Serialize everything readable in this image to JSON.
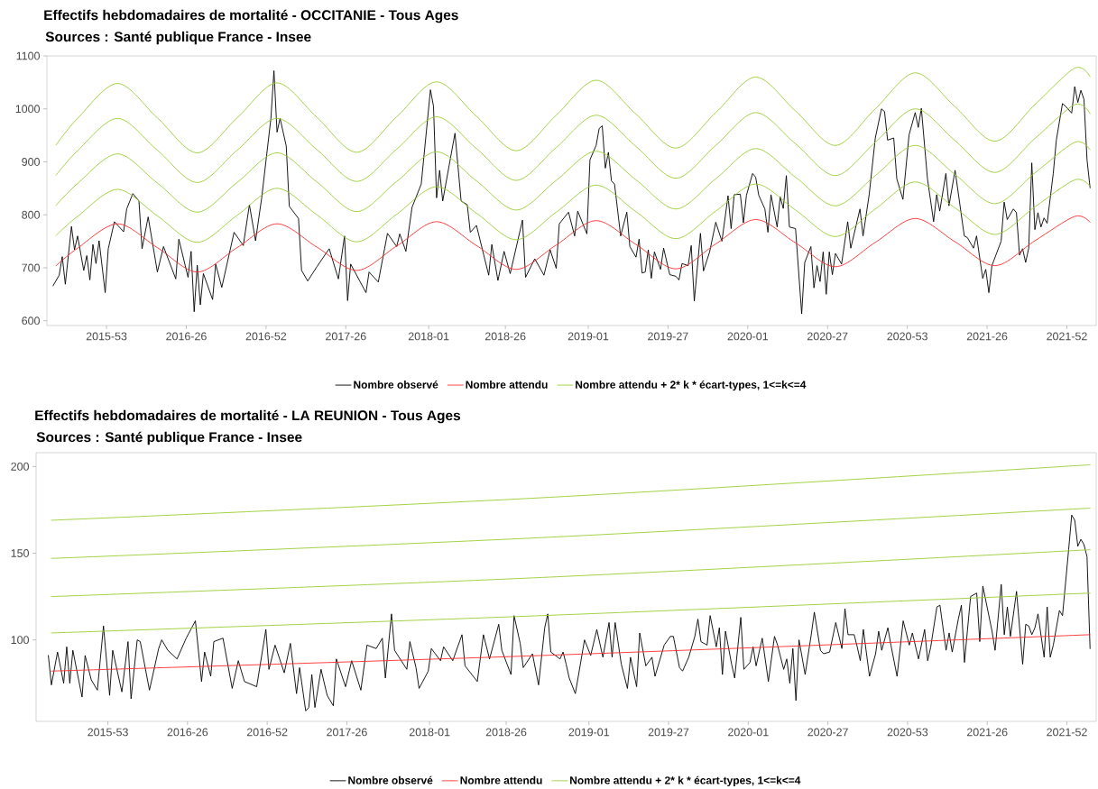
{
  "chart_data": [
    {
      "type": "line",
      "title": "Effectifs hebdomadaires de mortalité  - OCCITANIE - Tous Ages",
      "subtitle": "Sources : Santé publique France - Insee",
      "xlim": [
        "2015-08-17",
        "2022-03-07"
      ],
      "ylim": [
        591,
        1100
      ],
      "xticks": [
        {
          "value": "2015-12-31",
          "label": "2015-53"
        },
        {
          "value": "2016-06-30",
          "label": "2016-26"
        },
        {
          "value": "2016-12-29",
          "label": "2016-52"
        },
        {
          "value": "2017-06-29",
          "label": "2017-26"
        },
        {
          "value": "2018-01-04",
          "label": "2018-01"
        },
        {
          "value": "2018-06-28",
          "label": "2018-26"
        },
        {
          "value": "2019-01-03",
          "label": "2019-01"
        },
        {
          "value": "2019-07-04",
          "label": "2019-27"
        },
        {
          "value": "2020-01-02",
          "label": "2020-01"
        },
        {
          "value": "2020-07-02",
          "label": "2020-27"
        },
        {
          "value": "2020-12-31",
          "label": "2020-53"
        },
        {
          "value": "2021-07-01",
          "label": "2021-26"
        },
        {
          "value": "2021-12-30",
          "label": "2021-52"
        }
      ],
      "yticks": [
        600,
        700,
        800,
        900,
        1000,
        1100
      ],
      "legend": "bottom",
      "marker": "none",
      "line_style": "solid",
      "x": [
        "2015-09-07",
        "2015-10-26",
        "2016-01-25",
        "2016-04-25",
        "2016-07-25",
        "2016-10-24",
        "2017-01-23",
        "2017-04-24",
        "2017-07-24",
        "2017-10-23",
        "2018-01-22",
        "2018-04-23",
        "2018-07-23",
        "2018-10-22",
        "2019-01-21",
        "2019-04-22",
        "2019-07-22",
        "2019-10-21",
        "2020-01-20",
        "2020-04-20",
        "2020-07-20",
        "2020-10-19",
        "2021-01-18",
        "2021-04-19",
        "2021-07-19",
        "2021-10-18",
        "2022-01-17",
        "2022-02-21"
      ],
      "series": [
        {
          "name": "Nombre observé",
          "color": "#000000",
          "x": [
            "2015-08-31",
            "2015-09-14",
            "2015-09-21",
            "2015-09-28",
            "2015-10-12",
            "2015-10-19",
            "2015-10-26",
            "2015-11-09",
            "2015-11-16",
            "2015-11-23",
            "2015-11-30",
            "2015-12-07",
            "2015-12-14",
            "2015-12-28",
            "2016-01-04",
            "2016-01-18",
            "2016-02-08",
            "2016-02-15",
            "2016-02-29",
            "2016-03-14",
            "2016-03-21",
            "2016-04-04",
            "2016-04-25",
            "2016-05-09",
            "2016-06-06",
            "2016-06-13",
            "2016-07-04",
            "2016-07-11",
            "2016-07-18",
            "2016-07-25",
            "2016-08-01",
            "2016-08-08",
            "2016-08-29",
            "2016-09-05",
            "2016-09-19",
            "2016-10-17",
            "2016-11-07",
            "2016-11-21",
            "2016-12-05",
            "2016-12-19",
            "2017-01-09",
            "2017-01-16",
            "2017-01-23",
            "2017-01-30",
            "2017-02-13",
            "2017-02-20",
            "2017-03-13",
            "2017-03-20",
            "2017-04-03",
            "2017-04-24",
            "2017-05-22",
            "2017-06-12",
            "2017-06-26",
            "2017-07-03",
            "2017-07-10",
            "2017-08-14",
            "2017-08-21",
            "2017-09-11",
            "2017-10-02",
            "2017-10-23",
            "2017-10-30",
            "2017-11-13",
            "2017-11-27",
            "2017-12-18",
            "2018-01-08",
            "2018-01-15",
            "2018-01-22",
            "2018-01-29",
            "2018-02-05",
            "2018-03-05",
            "2018-03-19",
            "2018-04-02",
            "2018-04-09",
            "2018-04-23",
            "2018-05-21",
            "2018-05-28",
            "2018-06-11",
            "2018-06-25",
            "2018-07-09",
            "2018-08-06",
            "2018-08-13",
            "2018-09-03",
            "2018-09-24",
            "2018-10-08",
            "2018-10-22",
            "2018-10-29",
            "2018-11-19",
            "2018-12-03",
            "2018-12-10",
            "2018-12-31",
            "2019-01-07",
            "2019-01-21",
            "2019-01-28",
            "2019-02-04",
            "2019-02-11",
            "2019-02-18",
            "2019-02-25",
            "2019-03-04",
            "2019-03-18",
            "2019-04-01",
            "2019-04-08",
            "2019-04-22",
            "2019-04-29",
            "2019-05-06",
            "2019-05-13",
            "2019-05-20",
            "2019-05-27",
            "2019-06-03",
            "2019-06-17",
            "2019-06-24",
            "2019-07-08",
            "2019-07-22",
            "2019-07-29",
            "2019-08-05",
            "2019-08-19",
            "2019-08-26",
            "2019-09-02",
            "2019-09-16",
            "2019-09-23",
            "2019-10-07",
            "2019-10-21",
            "2019-11-04",
            "2019-11-18",
            "2019-11-25",
            "2019-12-02",
            "2019-12-16",
            "2019-12-23",
            "2019-12-30",
            "2020-01-13",
            "2020-01-20",
            "2020-01-27",
            "2020-02-10",
            "2020-02-17",
            "2020-02-24",
            "2020-03-09",
            "2020-03-16",
            "2020-03-23",
            "2020-03-30",
            "2020-04-06",
            "2020-04-20",
            "2020-05-04",
            "2020-05-11",
            "2020-05-25",
            "2020-06-01",
            "2020-06-08",
            "2020-06-15",
            "2020-06-22",
            "2020-06-29",
            "2020-07-06",
            "2020-07-13",
            "2020-07-20",
            "2020-08-03",
            "2020-08-17",
            "2020-08-24",
            "2020-09-14",
            "2020-09-21",
            "2020-10-05",
            "2020-10-19",
            "2020-11-02",
            "2020-11-09",
            "2020-11-16",
            "2020-11-30",
            "2020-12-07",
            "2020-12-21",
            "2021-01-04",
            "2021-01-18",
            "2021-01-25",
            "2021-02-01",
            "2021-02-15",
            "2021-03-01",
            "2021-03-08",
            "2021-03-15",
            "2021-03-29",
            "2021-04-05",
            "2021-04-19",
            "2021-05-10",
            "2021-05-17",
            "2021-05-31",
            "2021-06-07",
            "2021-06-21",
            "2021-06-28",
            "2021-07-05",
            "2021-07-12",
            "2021-08-02",
            "2021-08-09",
            "2021-08-16",
            "2021-08-30",
            "2021-09-06",
            "2021-09-13",
            "2021-09-20",
            "2021-09-27",
            "2021-10-04",
            "2021-10-11",
            "2021-10-18",
            "2021-10-25",
            "2021-11-01",
            "2021-11-08",
            "2021-11-15",
            "2021-11-29",
            "2021-12-06",
            "2021-12-20",
            "2021-12-27",
            "2022-01-10",
            "2022-01-17",
            "2022-01-24",
            "2022-01-31",
            "2022-02-07",
            "2022-02-14",
            "2022-02-21"
          ],
          "values": [
            666,
            686,
            721,
            669,
            778,
            734,
            760,
            695,
            723,
            677,
            744,
            708,
            751,
            653,
            736,
            787,
            768,
            811,
            840,
            826,
            736,
            796,
            692,
            740,
            679,
            754,
            682,
            731,
            617,
            705,
            630,
            689,
            640,
            707,
            663,
            767,
            742,
            819,
            751,
            832,
            982,
            1072,
            956,
            982,
            930,
            816,
            793,
            695,
            675,
            702,
            736,
            679,
            760,
            638,
            707,
            653,
            692,
            673,
            765,
            740,
            764,
            731,
            814,
            858,
            1036,
            1005,
            832,
            884,
            826,
            954,
            826,
            819,
            767,
            780,
            686,
            744,
            676,
            731,
            689,
            790,
            682,
            717,
            686,
            734,
            699,
            783,
            805,
            760,
            807,
            764,
            904,
            931,
            963,
            968,
            888,
            918,
            864,
            858,
            760,
            805,
            740,
            720,
            754,
            690,
            692,
            734,
            680,
            730,
            697,
            737,
            687,
            684,
            677,
            708,
            704,
            742,
            637,
            765,
            694,
            730,
            786,
            750,
            836,
            774,
            838,
            839,
            785,
            837,
            878,
            871,
            837,
            811,
            767,
            838,
            777,
            834,
            812,
            874,
            777,
            774,
            613,
            710,
            740,
            662,
            704,
            674,
            730,
            650,
            730,
            687,
            727,
            707,
            787,
            737,
            811,
            760,
            838,
            945,
            1000,
            995,
            941,
            945,
            868,
            829,
            951,
            993,
            965,
            1001,
            868,
            787,
            838,
            807,
            878,
            817,
            884,
            760,
            757,
            737,
            760,
            680,
            697,
            653,
            704,
            750,
            824,
            791,
            811,
            804,
            724,
            736,
            710,
            737,
            898,
            772,
            804,
            777,
            794,
            784,
            878,
            941,
            1010,
            1005,
            992,
            1042,
            1012,
            1035,
            1018,
            904,
            851
          ]
        },
        {
          "name": "Nombre attendu",
          "color": "#ff2a2a",
          "values": [
            704,
            737,
            783,
            738,
            692,
            738,
            783,
            739,
            695,
            741,
            787,
            742,
            697,
            743,
            789,
            744,
            698,
            745,
            791,
            747,
            702,
            748,
            793,
            749,
            704,
            751,
            797,
            786
          ]
        },
        {
          "name": "Nombre attendu + 2* k * écart-types, 1<=k<=4",
          "color": "#9acd32",
          "values": [
            761,
            797,
            848,
            798,
            748,
            799,
            850,
            800,
            749,
            801,
            853,
            803,
            753,
            805,
            856,
            806,
            755,
            807,
            858,
            809,
            759,
            811,
            862,
            813,
            763,
            815,
            866,
            854
          ]
        },
        {
          "color": "#9acd32",
          "values": [
            818,
            859,
            915,
            860,
            805,
            861,
            917,
            862,
            806,
            863,
            919,
            864,
            809,
            865,
            920,
            866,
            811,
            868,
            925,
            871,
            817,
            874,
            931,
            876,
            821,
            879,
            937,
            923
          ]
        },
        {
          "color": "#9acd32",
          "values": [
            875,
            921,
            982,
            922,
            861,
            922,
            982,
            923,
            863,
            924,
            985,
            925,
            865,
            927,
            988,
            929,
            869,
            931,
            993,
            934,
            874,
            937,
            1000,
            940,
            880,
            944,
            1008,
            991
          ]
        },
        {
          "color": "#9acd32",
          "values": [
            932,
            982,
            1048,
            983,
            917,
            983,
            1049,
            984,
            918,
            985,
            1051,
            986,
            921,
            988,
            1054,
            990,
            926,
            993,
            1060,
            996,
            931,
            1000,
            1068,
            1004,
            939,
            1008,
            1077,
            1061
          ]
        }
      ]
    },
    {
      "type": "line",
      "title": "Effectifs hebdomadaires de mortalité  - LA REUNION - Tous Ages",
      "subtitle": "Sources : Santé publique France - Insee",
      "xlim": [
        "2015-07-20",
        "2022-03-07"
      ],
      "ylim": [
        53,
        208
      ],
      "xticks": [
        {
          "value": "2015-12-31",
          "label": "2015-53"
        },
        {
          "value": "2016-06-30",
          "label": "2016-26"
        },
        {
          "value": "2016-12-29",
          "label": "2016-52"
        },
        {
          "value": "2017-06-29",
          "label": "2017-26"
        },
        {
          "value": "2018-01-04",
          "label": "2018-01"
        },
        {
          "value": "2018-06-28",
          "label": "2018-26"
        },
        {
          "value": "2019-01-03",
          "label": "2019-01"
        },
        {
          "value": "2019-07-04",
          "label": "2019-27"
        },
        {
          "value": "2020-01-02",
          "label": "2020-01"
        },
        {
          "value": "2020-07-02",
          "label": "2020-27"
        },
        {
          "value": "2020-12-31",
          "label": "2020-53"
        },
        {
          "value": "2021-07-01",
          "label": "2021-26"
        },
        {
          "value": "2021-12-30",
          "label": "2021-52"
        }
      ],
      "yticks": [
        100,
        150,
        200
      ],
      "legend": "bottom",
      "marker": "none",
      "line_style": "solid",
      "x": [
        "2015-08-24",
        "2018-09-17",
        "2022-02-21"
      ],
      "series": [
        {
          "name": "Nombre observé",
          "color": "#000000",
          "x": [
            "2015-08-17",
            "2015-08-24",
            "2015-09-07",
            "2015-09-21",
            "2015-09-28",
            "2015-10-05",
            "2015-10-12",
            "2015-11-02",
            "2015-11-09",
            "2015-11-23",
            "2015-12-07",
            "2015-12-21",
            "2016-01-04",
            "2016-01-11",
            "2016-02-01",
            "2016-02-15",
            "2016-02-22",
            "2016-03-07",
            "2016-03-14",
            "2016-04-04",
            "2016-04-25",
            "2016-05-02",
            "2016-05-16",
            "2016-06-06",
            "2016-06-27",
            "2016-07-18",
            "2016-08-01",
            "2016-08-08",
            "2016-08-22",
            "2016-08-29",
            "2016-09-19",
            "2016-10-10",
            "2016-10-24",
            "2016-11-07",
            "2016-12-05",
            "2016-12-26",
            "2017-01-02",
            "2017-01-16",
            "2017-02-06",
            "2017-02-20",
            "2017-03-06",
            "2017-03-13",
            "2017-03-27",
            "2017-04-03",
            "2017-04-10",
            "2017-04-17",
            "2017-05-01",
            "2017-05-15",
            "2017-05-29",
            "2017-06-05",
            "2017-06-26",
            "2017-07-10",
            "2017-07-31",
            "2017-08-14",
            "2017-09-04",
            "2017-09-18",
            "2017-09-25",
            "2017-10-09",
            "2017-10-16",
            "2017-11-13",
            "2017-11-20",
            "2017-12-04",
            "2017-12-11",
            "2018-01-01",
            "2018-01-08",
            "2018-01-29",
            "2018-02-05",
            "2018-02-26",
            "2018-03-19",
            "2018-03-26",
            "2018-04-23",
            "2018-05-07",
            "2018-05-21",
            "2018-06-11",
            "2018-06-18",
            "2018-07-09",
            "2018-07-16",
            "2018-07-30",
            "2018-08-06",
            "2018-08-27",
            "2018-09-10",
            "2018-09-24",
            "2018-10-01",
            "2018-10-08",
            "2018-10-29",
            "2018-11-05",
            "2018-11-12",
            "2018-11-19",
            "2018-12-03",
            "2018-12-24",
            "2019-01-07",
            "2019-01-21",
            "2019-02-04",
            "2019-02-18",
            "2019-02-25",
            "2019-03-04",
            "2019-03-18",
            "2019-04-01",
            "2019-04-08",
            "2019-04-22",
            "2019-04-29",
            "2019-05-13",
            "2019-05-27",
            "2019-06-03",
            "2019-06-24",
            "2019-07-08",
            "2019-07-15",
            "2019-07-29",
            "2019-08-05",
            "2019-08-19",
            "2019-09-02",
            "2019-09-09",
            "2019-09-16",
            "2019-09-30",
            "2019-10-07",
            "2019-10-21",
            "2019-10-28",
            "2019-11-04",
            "2019-11-11",
            "2019-11-25",
            "2019-12-02",
            "2019-12-16",
            "2019-12-23",
            "2020-01-06",
            "2020-01-13",
            "2020-01-20",
            "2020-02-03",
            "2020-02-17",
            "2020-03-02",
            "2020-03-09",
            "2020-03-23",
            "2020-03-30",
            "2020-04-06",
            "2020-04-13",
            "2020-04-20",
            "2020-04-27",
            "2020-05-11",
            "2020-05-25",
            "2020-06-01",
            "2020-06-15",
            "2020-06-22",
            "2020-07-06",
            "2020-07-20",
            "2020-08-03",
            "2020-08-10",
            "2020-08-17",
            "2020-08-31",
            "2020-09-07",
            "2020-09-14",
            "2020-09-21",
            "2020-10-05",
            "2020-10-19",
            "2020-10-26",
            "2020-11-02",
            "2020-11-16",
            "2020-11-23",
            "2020-12-07",
            "2020-12-21",
            "2021-01-04",
            "2021-01-11",
            "2021-01-25",
            "2021-02-08",
            "2021-02-15",
            "2021-02-22",
            "2021-03-08",
            "2021-03-15",
            "2021-03-29",
            "2021-04-05",
            "2021-04-12",
            "2021-04-26",
            "2021-05-03",
            "2021-05-10",
            "2021-05-24",
            "2021-06-07",
            "2021-06-14",
            "2021-06-21",
            "2021-07-12",
            "2021-07-19",
            "2021-08-02",
            "2021-08-09",
            "2021-08-16",
            "2021-08-23",
            "2021-09-06",
            "2021-09-20",
            "2021-09-27",
            "2021-10-04",
            "2021-10-11",
            "2021-10-18",
            "2021-10-25",
            "2021-11-08",
            "2021-11-15",
            "2021-11-22",
            "2021-11-29",
            "2021-12-13",
            "2021-12-20",
            "2022-01-03",
            "2022-01-10",
            "2022-01-17",
            "2022-01-24",
            "2022-01-31",
            "2022-02-07",
            "2022-02-14",
            "2022-02-21"
          ],
          "values": [
            91,
            74,
            93,
            75,
            96,
            75,
            94,
            67,
            91,
            77,
            71,
            108,
            68,
            94,
            70,
            99,
            66,
            100,
            99,
            71,
            95,
            100,
            94,
            89,
            101,
            111,
            76,
            93,
            79,
            99,
            101,
            72,
            88,
            76,
            73,
            106,
            83,
            97,
            81,
            98,
            69,
            84,
            59,
            61,
            80,
            61,
            83,
            68,
            62,
            89,
            73,
            88,
            71,
            97,
            95,
            101,
            78,
            115,
            94,
            83,
            99,
            84,
            72,
            82,
            95,
            88,
            96,
            88,
            103,
            85,
            76,
            103,
            89,
            109,
            94,
            80,
            114,
            98,
            84,
            92,
            74,
            107,
            115,
            93,
            89,
            93,
            86,
            78,
            69,
            100,
            91,
            106,
            90,
            110,
            90,
            110,
            86,
            72,
            90,
            73,
            104,
            85,
            90,
            79,
            97,
            102,
            102,
            84,
            82,
            90,
            102,
            112,
            99,
            97,
            114,
            96,
            107,
            80,
            105,
            86,
            78,
            113,
            83,
            87,
            96,
            85,
            101,
            76,
            102,
            97,
            83,
            89,
            75,
            95,
            65,
            100,
            80,
            103,
            116,
            94,
            92,
            93,
            110,
            95,
            118,
            103,
            103,
            96,
            88,
            106,
            79,
            92,
            105,
            94,
            107,
            97,
            79,
            111,
            97,
            104,
            89,
            106,
            88,
            96,
            119,
            120,
            94,
            104,
            93,
            112,
            120,
            87,
            125,
            127,
            99,
            131,
            105,
            94,
            132,
            103,
            119,
            102,
            128,
            86,
            109,
            108,
            103,
            107,
            115,
            90,
            119,
            90,
            97,
            117,
            114,
            152,
            172,
            169,
            154,
            158,
            155,
            148,
            95
          ]
        },
        {
          "name": "Nombre attendu",
          "color": "#ff2a2a",
          "values": [
            82,
            91,
            103
          ]
        },
        {
          "name": "Nombre attendu + 2* k * écart-types, 1<=k<=4",
          "color": "#9acd32",
          "values": [
            104,
            114,
            127
          ]
        },
        {
          "color": "#9acd32",
          "values": [
            125,
            136,
            152
          ]
        },
        {
          "color": "#9acd32",
          "values": [
            147,
            159,
            176
          ]
        },
        {
          "color": "#9acd32",
          "values": [
            169,
            182,
            201
          ]
        }
      ]
    }
  ]
}
